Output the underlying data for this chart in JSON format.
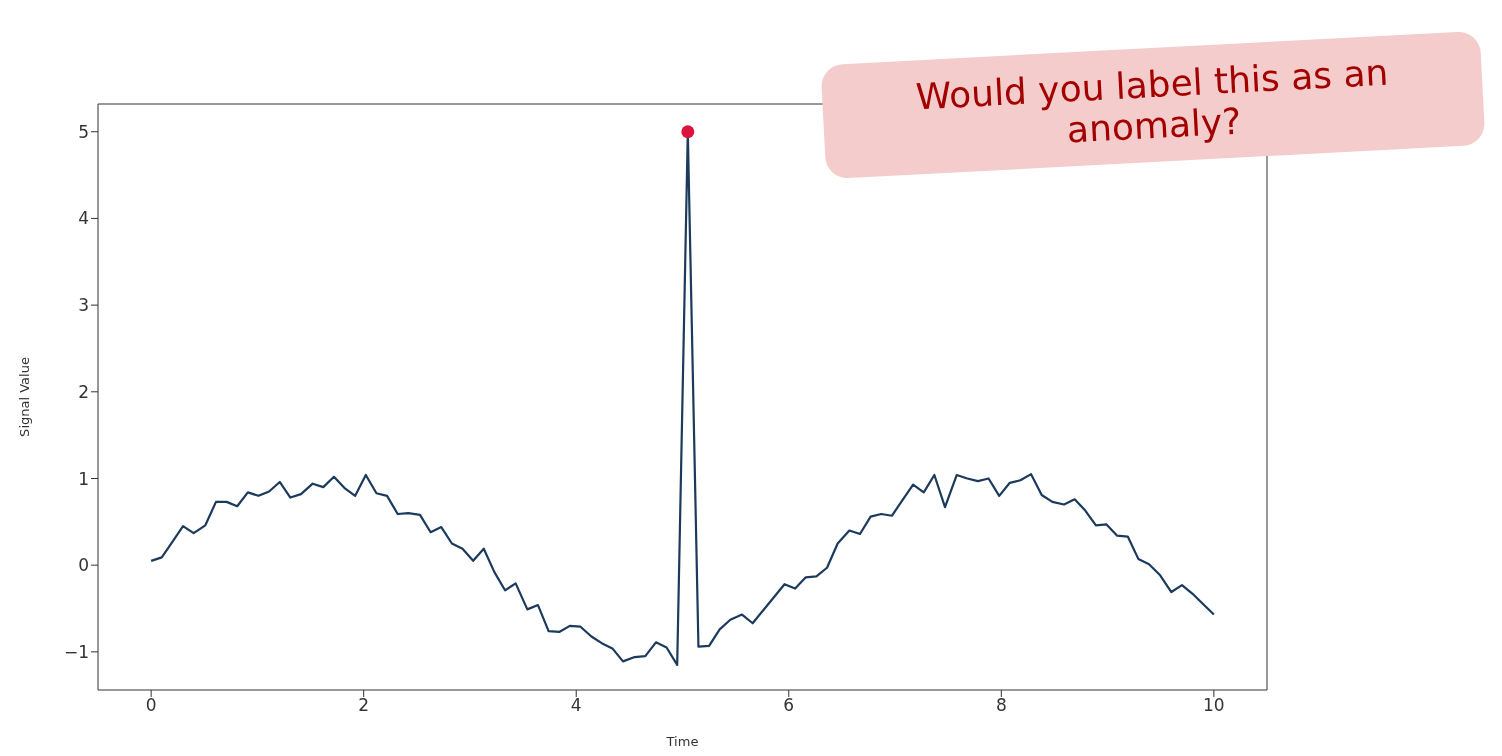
{
  "chart_data": {
    "type": "line",
    "xlabel": "Time",
    "ylabel": "Signal Value",
    "annotations": [
      "Would you label this as an anomaly?"
    ],
    "xlim": [
      -0.5,
      10.5
    ],
    "ylim": [
      -1.44,
      5.32
    ],
    "xticks": [
      0,
      2,
      4,
      6,
      8,
      10
    ],
    "yticks": [
      -1,
      0,
      1,
      2,
      3,
      4,
      5
    ],
    "grid": false,
    "series": [
      {
        "color": "#1b3a5c",
        "x": [
          0,
          0.1,
          0.2,
          0.3,
          0.4,
          0.51,
          0.61,
          0.71,
          0.81,
          0.91,
          1.01,
          1.11,
          1.21,
          1.31,
          1.41,
          1.52,
          1.62,
          1.72,
          1.82,
          1.92,
          2.02,
          2.12,
          2.22,
          2.32,
          2.42,
          2.53,
          2.63,
          2.73,
          2.83,
          2.93,
          3.03,
          3.13,
          3.23,
          3.33,
          3.43,
          3.54,
          3.64,
          3.74,
          3.84,
          3.94,
          4.04,
          4.14,
          4.24,
          4.34,
          4.44,
          4.55,
          4.65,
          4.75,
          4.85,
          4.95,
          5.05,
          5.15,
          5.25,
          5.35,
          5.45,
          5.56,
          5.66,
          5.76,
          5.86,
          5.96,
          6.06,
          6.16,
          6.26,
          6.36,
          6.46,
          6.57,
          6.67,
          6.77,
          6.87,
          6.97,
          7.07,
          7.17,
          7.27,
          7.37,
          7.47,
          7.58,
          7.68,
          7.78,
          7.88,
          7.98,
          8.08,
          8.18,
          8.28,
          8.38,
          8.48,
          8.59,
          8.69,
          8.79,
          8.89,
          8.99,
          9.09,
          9.19,
          9.29,
          9.39,
          9.49,
          9.6,
          9.7,
          9.8,
          9.9,
          10
        ],
        "values": [
          0.05,
          0.09,
          0.27,
          0.45,
          0.37,
          0.46,
          0.73,
          0.73,
          0.68,
          0.84,
          0.8,
          0.85,
          0.96,
          0.78,
          0.82,
          0.94,
          0.9,
          1.02,
          0.89,
          0.8,
          1.04,
          0.83,
          0.8,
          0.59,
          0.6,
          0.58,
          0.38,
          0.44,
          0.25,
          0.19,
          0.05,
          0.19,
          -0.08,
          -0.29,
          -0.21,
          -0.51,
          -0.46,
          -0.76,
          -0.77,
          -0.7,
          -0.71,
          -0.82,
          -0.9,
          -0.96,
          -1.11,
          -1.06,
          -1.05,
          -0.89,
          -0.95,
          -1.15,
          5.0,
          -0.94,
          -0.93,
          -0.74,
          -0.63,
          -0.57,
          -0.67,
          -0.52,
          -0.37,
          -0.22,
          -0.27,
          -0.14,
          -0.13,
          -0.03,
          0.25,
          0.4,
          0.36,
          0.56,
          0.59,
          0.57,
          0.75,
          0.93,
          0.84,
          1.04,
          0.67,
          1.04,
          1.0,
          0.97,
          1.0,
          0.8,
          0.95,
          0.98,
          1.05,
          0.81,
          0.73,
          0.7,
          0.76,
          0.63,
          0.46,
          0.47,
          0.34,
          0.33,
          0.07,
          0.01,
          -0.11,
          -0.31,
          -0.23,
          -0.33,
          -0.45,
          -0.57
        ]
      },
      {
        "type": "scatter",
        "color": "#dc143c",
        "marker": "circle",
        "x": [
          5.05
        ],
        "values": [
          5.0
        ]
      }
    ]
  }
}
